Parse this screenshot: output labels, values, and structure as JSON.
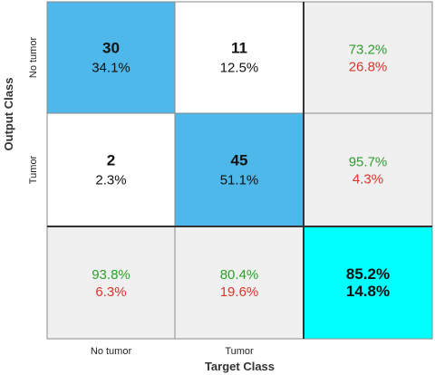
{
  "chart_data": {
    "type": "heatmap",
    "title": "",
    "xlabel": "Target Class",
    "ylabel": "Output Class",
    "classes": [
      "No tumor",
      "Tumor"
    ],
    "matrix": [
      [
        {
          "count": "30",
          "percent": "34.1%"
        },
        {
          "count": "11",
          "percent": "12.5%"
        }
      ],
      [
        {
          "count": "2",
          "percent": "2.3%"
        },
        {
          "count": "45",
          "percent": "51.1%"
        }
      ]
    ],
    "row_summary": [
      {
        "correct": "73.2%",
        "incorrect": "26.8%"
      },
      {
        "correct": "95.7%",
        "incorrect": "4.3%"
      }
    ],
    "column_summary": [
      {
        "correct": "93.8%",
        "incorrect": "6.3%"
      },
      {
        "correct": "80.4%",
        "incorrect": "19.6%"
      }
    ],
    "overall": {
      "correct": "85.2%",
      "incorrect": "14.8%"
    },
    "colors": {
      "diagonal": "#4fb8ea",
      "off_diagonal": "#ffffff",
      "summary": "#f0f0f0",
      "overall": "#00ffff",
      "correct_text": "#2ca02c",
      "incorrect_text": "#e0332a"
    }
  }
}
